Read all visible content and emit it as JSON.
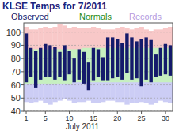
{
  "chart_data": {
    "type": "bar",
    "title": "KLSE Temps for 7/2011",
    "xlabel": "July 2011",
    "xlim": [
      0.5,
      31.5
    ],
    "xticks": [
      1,
      5,
      10,
      15,
      20,
      25,
      30
    ],
    "ylim": [
      40,
      107
    ],
    "yticks": [
      40,
      50,
      60,
      70,
      80,
      90,
      100
    ],
    "grid": true,
    "x": [
      1,
      2,
      3,
      4,
      5,
      6,
      7,
      8,
      9,
      10,
      11,
      12,
      13,
      14,
      15,
      16,
      17,
      18,
      19,
      20,
      21,
      22,
      23,
      24,
      25,
      26,
      27,
      28,
      29,
      30,
      31
    ],
    "series": [
      {
        "name": "Records",
        "type": "area",
        "color": "#b59be0",
        "colors": [
          "#f8c8c8",
          "#cccdf5"
        ],
        "high": [
          104,
          102,
          102,
          103,
          104,
          103,
          104,
          106,
          105,
          103,
          104,
          103,
          103,
          103,
          104,
          103,
          102,
          102,
          102,
          103,
          104,
          103,
          102,
          103,
          104,
          102,
          101,
          102,
          102,
          103,
          104
        ],
        "low": [
          47,
          46,
          47,
          48,
          46,
          45,
          47,
          48,
          49,
          48,
          46,
          47,
          47,
          48,
          46,
          46,
          47,
          48,
          48,
          47,
          47,
          45,
          46,
          46,
          47,
          46,
          45,
          46,
          48,
          47,
          46
        ]
      },
      {
        "name": "Normals",
        "type": "area",
        "color": "#228b22",
        "colors": [
          "#c6f0bf"
        ],
        "high": [
          87,
          87,
          87,
          87,
          87,
          87,
          87,
          87,
          87,
          87,
          87,
          87,
          88,
          88,
          88,
          88,
          88,
          88,
          88,
          88,
          88,
          88,
          88,
          88,
          88,
          88,
          88,
          88,
          88,
          88,
          88
        ],
        "low": [
          61,
          61,
          61,
          61,
          61,
          61,
          61,
          61,
          61,
          61,
          62,
          62,
          62,
          62,
          62,
          62,
          62,
          62,
          62,
          62,
          62,
          62,
          62,
          62,
          62,
          62,
          62,
          62,
          62,
          62,
          62
        ]
      },
      {
        "name": "Observed",
        "type": "bar",
        "color": "#141a6b",
        "high": [
          99,
          88,
          86,
          88,
          91,
          90,
          89,
          85,
          90,
          86,
          80,
          87,
          85,
          77,
          88,
          87,
          81,
          96,
          96,
          95,
          92,
          99,
          96,
          93,
          95,
          96,
          94,
          83,
          88,
          91,
          90
        ],
        "low": [
          62,
          66,
          58,
          64,
          66,
          66,
          64,
          66,
          63,
          68,
          62,
          64,
          61,
          56,
          63,
          66,
          63,
          63,
          65,
          66,
          64,
          69,
          64,
          65,
          59,
          64,
          62,
          66,
          67,
          68,
          67
        ]
      }
    ]
  }
}
